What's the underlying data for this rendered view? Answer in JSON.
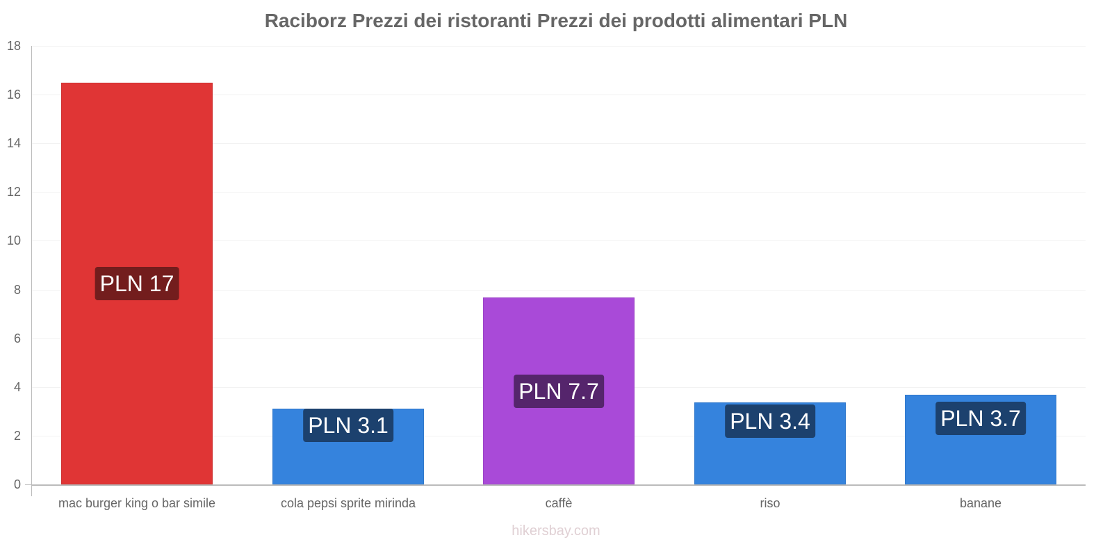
{
  "title": "Raciborz Prezzi dei ristoranti Prezzi dei prodotti alimentari PLN",
  "footer": "hikersbay.com",
  "y_ticks": [
    "0",
    "2",
    "4",
    "6",
    "8",
    "10",
    "12",
    "14",
    "16",
    "18"
  ],
  "bars": [
    {
      "category": "mac burger king o bar simile",
      "label": "PLN 17",
      "value": 16.5,
      "color": "#e03535",
      "label_bg": "#731d1d"
    },
    {
      "category": "cola pepsi sprite mirinda",
      "label": "PLN 3.1",
      "value": 3.1,
      "color": "#3583dd",
      "label_bg": "#1c416e"
    },
    {
      "category": "caffè",
      "label": "PLN 7.7",
      "value": 7.67,
      "color": "#a94ad8",
      "label_bg": "#55256c"
    },
    {
      "category": "riso",
      "label": "PLN 3.4",
      "value": 3.37,
      "color": "#3583dd",
      "label_bg": "#1c416e"
    },
    {
      "category": "banane",
      "label": "PLN 3.7",
      "value": 3.68,
      "color": "#3583dd",
      "label_bg": "#1c416e"
    }
  ],
  "chart_data": {
    "type": "bar",
    "title": "Raciborz Prezzi dei ristoranti Prezzi dei prodotti alimentari PLN",
    "categories": [
      "mac burger king o bar simile",
      "cola pepsi sprite mirinda",
      "caffè",
      "riso",
      "banane"
    ],
    "values": [
      16.5,
      3.1,
      7.67,
      3.37,
      3.68
    ],
    "data_labels": [
      "PLN 17",
      "PLN 3.1",
      "PLN 7.7",
      "PLN 3.4",
      "PLN 3.7"
    ],
    "colors": [
      "#e03535",
      "#3583dd",
      "#a94ad8",
      "#3583dd",
      "#3583dd"
    ],
    "xlabel": "",
    "ylabel": "",
    "ylim": [
      0,
      18
    ],
    "y_ticks": [
      0,
      2,
      4,
      6,
      8,
      10,
      12,
      14,
      16,
      18
    ],
    "grid": true,
    "legend": "none",
    "source": "hikersbay.com"
  }
}
